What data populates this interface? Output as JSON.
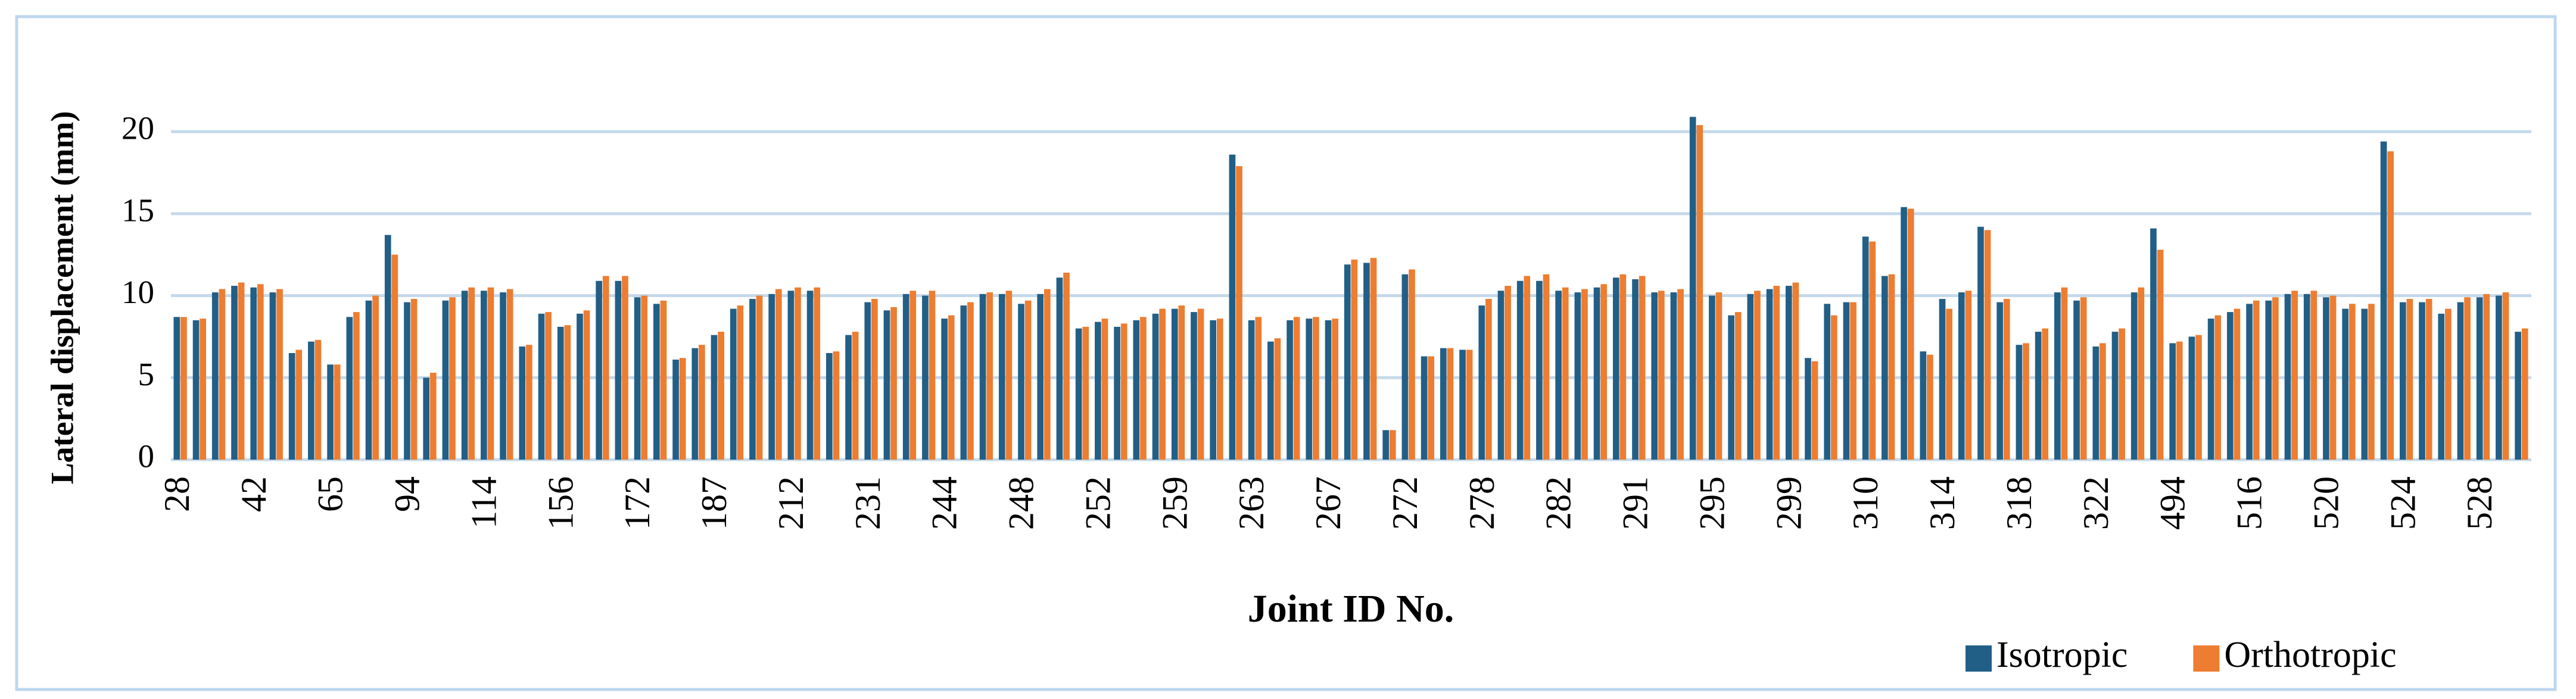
{
  "chart_data": {
    "type": "bar",
    "y_label": "Lateral displacement (mm)",
    "x_label": "Joint ID No.",
    "categories": [
      "28",
      null,
      null,
      null,
      "42",
      null,
      null,
      null,
      "65",
      null,
      null,
      null,
      "94",
      null,
      null,
      null,
      "114",
      null,
      null,
      null,
      "156",
      null,
      null,
      null,
      "172",
      null,
      null,
      null,
      "187",
      null,
      null,
      null,
      "212",
      null,
      null,
      null,
      "231",
      null,
      null,
      null,
      "244",
      null,
      null,
      null,
      "248",
      null,
      null,
      null,
      "252",
      null,
      null,
      null,
      "259",
      null,
      null,
      null,
      "263",
      null,
      null,
      null,
      "267",
      null,
      null,
      null,
      "272",
      null,
      null,
      null,
      "278",
      null,
      null,
      null,
      "282",
      null,
      null,
      null,
      "291",
      null,
      null,
      null,
      "295",
      null,
      null,
      null,
      "299",
      null,
      null,
      null,
      "310",
      null,
      null,
      null,
      "314",
      null,
      null,
      null,
      "318",
      null,
      null,
      null,
      "322",
      null,
      null,
      null,
      "494",
      null,
      null,
      null,
      "516",
      null,
      null,
      null,
      "520",
      null,
      null,
      null,
      "524",
      null,
      null,
      null,
      "528",
      null,
      null
    ],
    "series": [
      {
        "name": "Isotropic",
        "color": "#215f87",
        "values": [
          8.7,
          8.5,
          10.2,
          10.6,
          10.5,
          10.2,
          6.5,
          7.2,
          5.8,
          8.7,
          9.7,
          13.7,
          9.6,
          5.0,
          9.7,
          10.3,
          10.3,
          10.2,
          6.9,
          8.9,
          8.1,
          8.9,
          10.9,
          10.9,
          9.9,
          9.5,
          6.1,
          6.8,
          7.6,
          9.2,
          9.8,
          10.1,
          10.3,
          10.3,
          6.5,
          7.6,
          9.6,
          9.1,
          10.1,
          10.0,
          8.6,
          9.4,
          10.1,
          10.1,
          9.5,
          10.1,
          11.1,
          8.0,
          8.4,
          8.1,
          8.5,
          8.9,
          9.2,
          9.0,
          8.5,
          18.6,
          8.5,
          7.2,
          8.5,
          8.6,
          8.5,
          11.9,
          12.0,
          1.8,
          11.3,
          6.3,
          6.8,
          6.7,
          9.4,
          10.3,
          10.9,
          10.9,
          10.3,
          10.2,
          10.5,
          11.1,
          11.0,
          10.2,
          10.2,
          20.9,
          10.0,
          8.8,
          10.1,
          10.4,
          10.6,
          6.2,
          9.5,
          9.6,
          13.6,
          11.2,
          15.4,
          6.6,
          9.8,
          10.2,
          14.2,
          9.6,
          7.0,
          7.8,
          10.2,
          9.7,
          6.9,
          7.8,
          10.2,
          14.1,
          7.1,
          7.5,
          8.6,
          9.0,
          9.5,
          9.7,
          10.1,
          10.1,
          9.9,
          9.2,
          9.2,
          19.4,
          9.6,
          9.6,
          8.9,
          9.6,
          9.9,
          10.0,
          7.8
        ]
      },
      {
        "name": "Orthotropic",
        "color": "#ed7d31",
        "values": [
          8.7,
          8.6,
          10.4,
          10.8,
          10.7,
          10.4,
          6.7,
          7.3,
          5.8,
          9.0,
          10.0,
          12.5,
          9.8,
          5.3,
          9.9,
          10.5,
          10.5,
          10.4,
          7.0,
          9.0,
          8.2,
          9.1,
          11.2,
          11.2,
          10.0,
          9.7,
          6.2,
          7.0,
          7.8,
          9.4,
          10.0,
          10.4,
          10.5,
          10.5,
          6.6,
          7.8,
          9.8,
          9.3,
          10.3,
          10.3,
          8.8,
          9.6,
          10.2,
          10.3,
          9.7,
          10.4,
          11.4,
          8.1,
          8.6,
          8.3,
          8.7,
          9.2,
          9.4,
          9.2,
          8.6,
          17.9,
          8.7,
          7.4,
          8.7,
          8.7,
          8.6,
          12.2,
          12.3,
          1.8,
          11.6,
          6.3,
          6.8,
          6.7,
          9.8,
          10.6,
          11.2,
          11.3,
          10.5,
          10.4,
          10.7,
          11.3,
          11.2,
          10.3,
          10.4,
          20.4,
          10.2,
          9.0,
          10.3,
          10.6,
          10.8,
          6.0,
          8.8,
          9.6,
          13.3,
          11.3,
          15.3,
          6.4,
          9.2,
          10.3,
          14.0,
          9.8,
          7.1,
          8.0,
          10.5,
          9.9,
          7.1,
          8.0,
          10.5,
          12.8,
          7.2,
          7.6,
          8.8,
          9.2,
          9.7,
          9.9,
          10.3,
          10.3,
          10.0,
          9.5,
          9.5,
          18.8,
          9.8,
          9.8,
          9.2,
          9.9,
          10.1,
          10.2,
          8.0
        ]
      }
    ],
    "ylim": [
      0,
      22
    ],
    "yticks": [
      0,
      5,
      10,
      15,
      20
    ],
    "grid": true,
    "legend": "bottom-right"
  }
}
